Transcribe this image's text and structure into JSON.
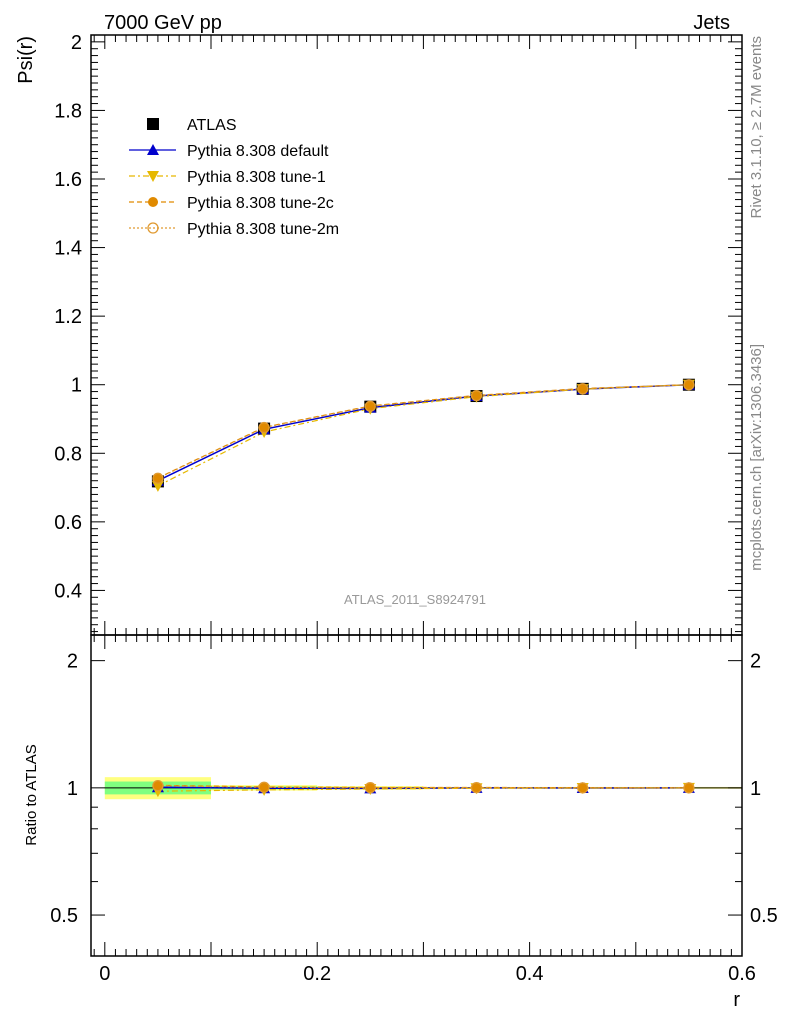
{
  "header": {
    "left": "7000 GeV pp",
    "right": "Jets"
  },
  "side_labels": {
    "rivet": "Rivet 3.1.10, ≥ 2.7M events",
    "mcplots": "mcplots.cern.ch [arXiv:1306.3436]"
  },
  "watermark": "ATLAS_2011_S8924791",
  "colors": {
    "atlas": "#000000",
    "default": "#0000cc",
    "tune1": "#e6b800",
    "tune2c": "#e08a00",
    "tune2m": "#e09a30",
    "band_outer": "#ffff80",
    "band_inner": "#80ff80"
  },
  "chart_data": [
    {
      "type": "line",
      "panel": "main",
      "xlabel": "r",
      "ylabel": "Psi(r)",
      "xlim": [
        -0.013,
        0.6
      ],
      "ylim": [
        0.27,
        2.02
      ],
      "yticks": [
        0.4,
        0.6,
        0.8,
        1,
        1.2,
        1.4,
        1.6,
        1.8,
        2
      ],
      "ytick_labels": [
        "0.4",
        "0.6",
        "0.8",
        "1",
        "1.2",
        "1.4",
        "1.6",
        "1.8",
        "2"
      ],
      "xticks": [
        0,
        0.2,
        0.4,
        0.6
      ],
      "xtick_labels": [
        "0",
        "0.2",
        "0.4",
        "0.6"
      ],
      "x": [
        0.05,
        0.15,
        0.25,
        0.35,
        0.45,
        0.55
      ],
      "legend": "top-left",
      "series": [
        {
          "name": "ATLAS",
          "key": "atlas",
          "style": "data",
          "values": [
            0.718,
            0.872,
            0.936,
            0.967,
            0.988,
            1.0
          ]
        },
        {
          "name": "Pythia 8.308 default",
          "key": "default",
          "style": "solid",
          "marker": "triangle-up",
          "values": [
            0.72,
            0.87,
            0.933,
            0.967,
            0.987,
            1.0
          ]
        },
        {
          "name": "Pythia 8.308 tune-1",
          "key": "tune1",
          "style": "dashdot",
          "marker": "triangle-down",
          "values": [
            0.705,
            0.862,
            0.93,
            0.965,
            0.987,
            1.0
          ]
        },
        {
          "name": "Pythia 8.308 tune-2c",
          "key": "tune2c",
          "style": "dashed",
          "marker": "circle",
          "values": [
            0.728,
            0.876,
            0.938,
            0.969,
            0.989,
            1.0
          ]
        },
        {
          "name": "Pythia 8.308 tune-2m",
          "key": "tune2m",
          "style": "dotted",
          "marker": "circle-open",
          "values": [
            0.727,
            0.875,
            0.937,
            0.968,
            0.988,
            1.0
          ]
        }
      ]
    },
    {
      "type": "line",
      "panel": "ratio",
      "xlabel": "r",
      "ylabel": "Ratio to ATLAS",
      "xlim": [
        -0.013,
        0.6
      ],
      "ylim": [
        0.4,
        2.3
      ],
      "log_y": true,
      "yticks": [
        0.5,
        1,
        2
      ],
      "ytick_labels": [
        "0.5",
        "1",
        "2"
      ],
      "x": [
        0.05,
        0.15,
        0.25,
        0.35,
        0.45,
        0.55
      ],
      "band": {
        "outer": [
          [
            0.0,
            0.1,
            0.94,
            1.06
          ],
          [
            0.1,
            0.2,
            0.985,
            1.015
          ],
          [
            0.2,
            0.3,
            0.99,
            1.01
          ],
          [
            0.3,
            0.6,
            0.995,
            1.005
          ]
        ],
        "inner": [
          [
            0.0,
            0.1,
            0.965,
            1.035
          ],
          [
            0.1,
            0.2,
            0.992,
            1.008
          ]
        ]
      },
      "series": [
        {
          "name": "Pythia 8.308 default",
          "key": "default",
          "style": "solid",
          "marker": "triangle-up",
          "values": [
            1.003,
            0.998,
            0.997,
            1.0,
            0.999,
            1.0
          ]
        },
        {
          "name": "Pythia 8.308 tune-1",
          "key": "tune1",
          "style": "dashdot",
          "marker": "triangle-down",
          "values": [
            0.982,
            0.989,
            0.994,
            0.998,
            0.999,
            1.0
          ]
        },
        {
          "name": "Pythia 8.308 tune-2c",
          "key": "tune2c",
          "style": "dashed",
          "marker": "circle",
          "values": [
            1.014,
            1.005,
            1.002,
            1.002,
            1.001,
            1.0
          ]
        },
        {
          "name": "Pythia 8.308 tune-2m",
          "key": "tune2m",
          "style": "dotted",
          "marker": "circle-open",
          "values": [
            1.012,
            1.003,
            1.001,
            1.001,
            1.0,
            1.0
          ]
        }
      ]
    }
  ]
}
